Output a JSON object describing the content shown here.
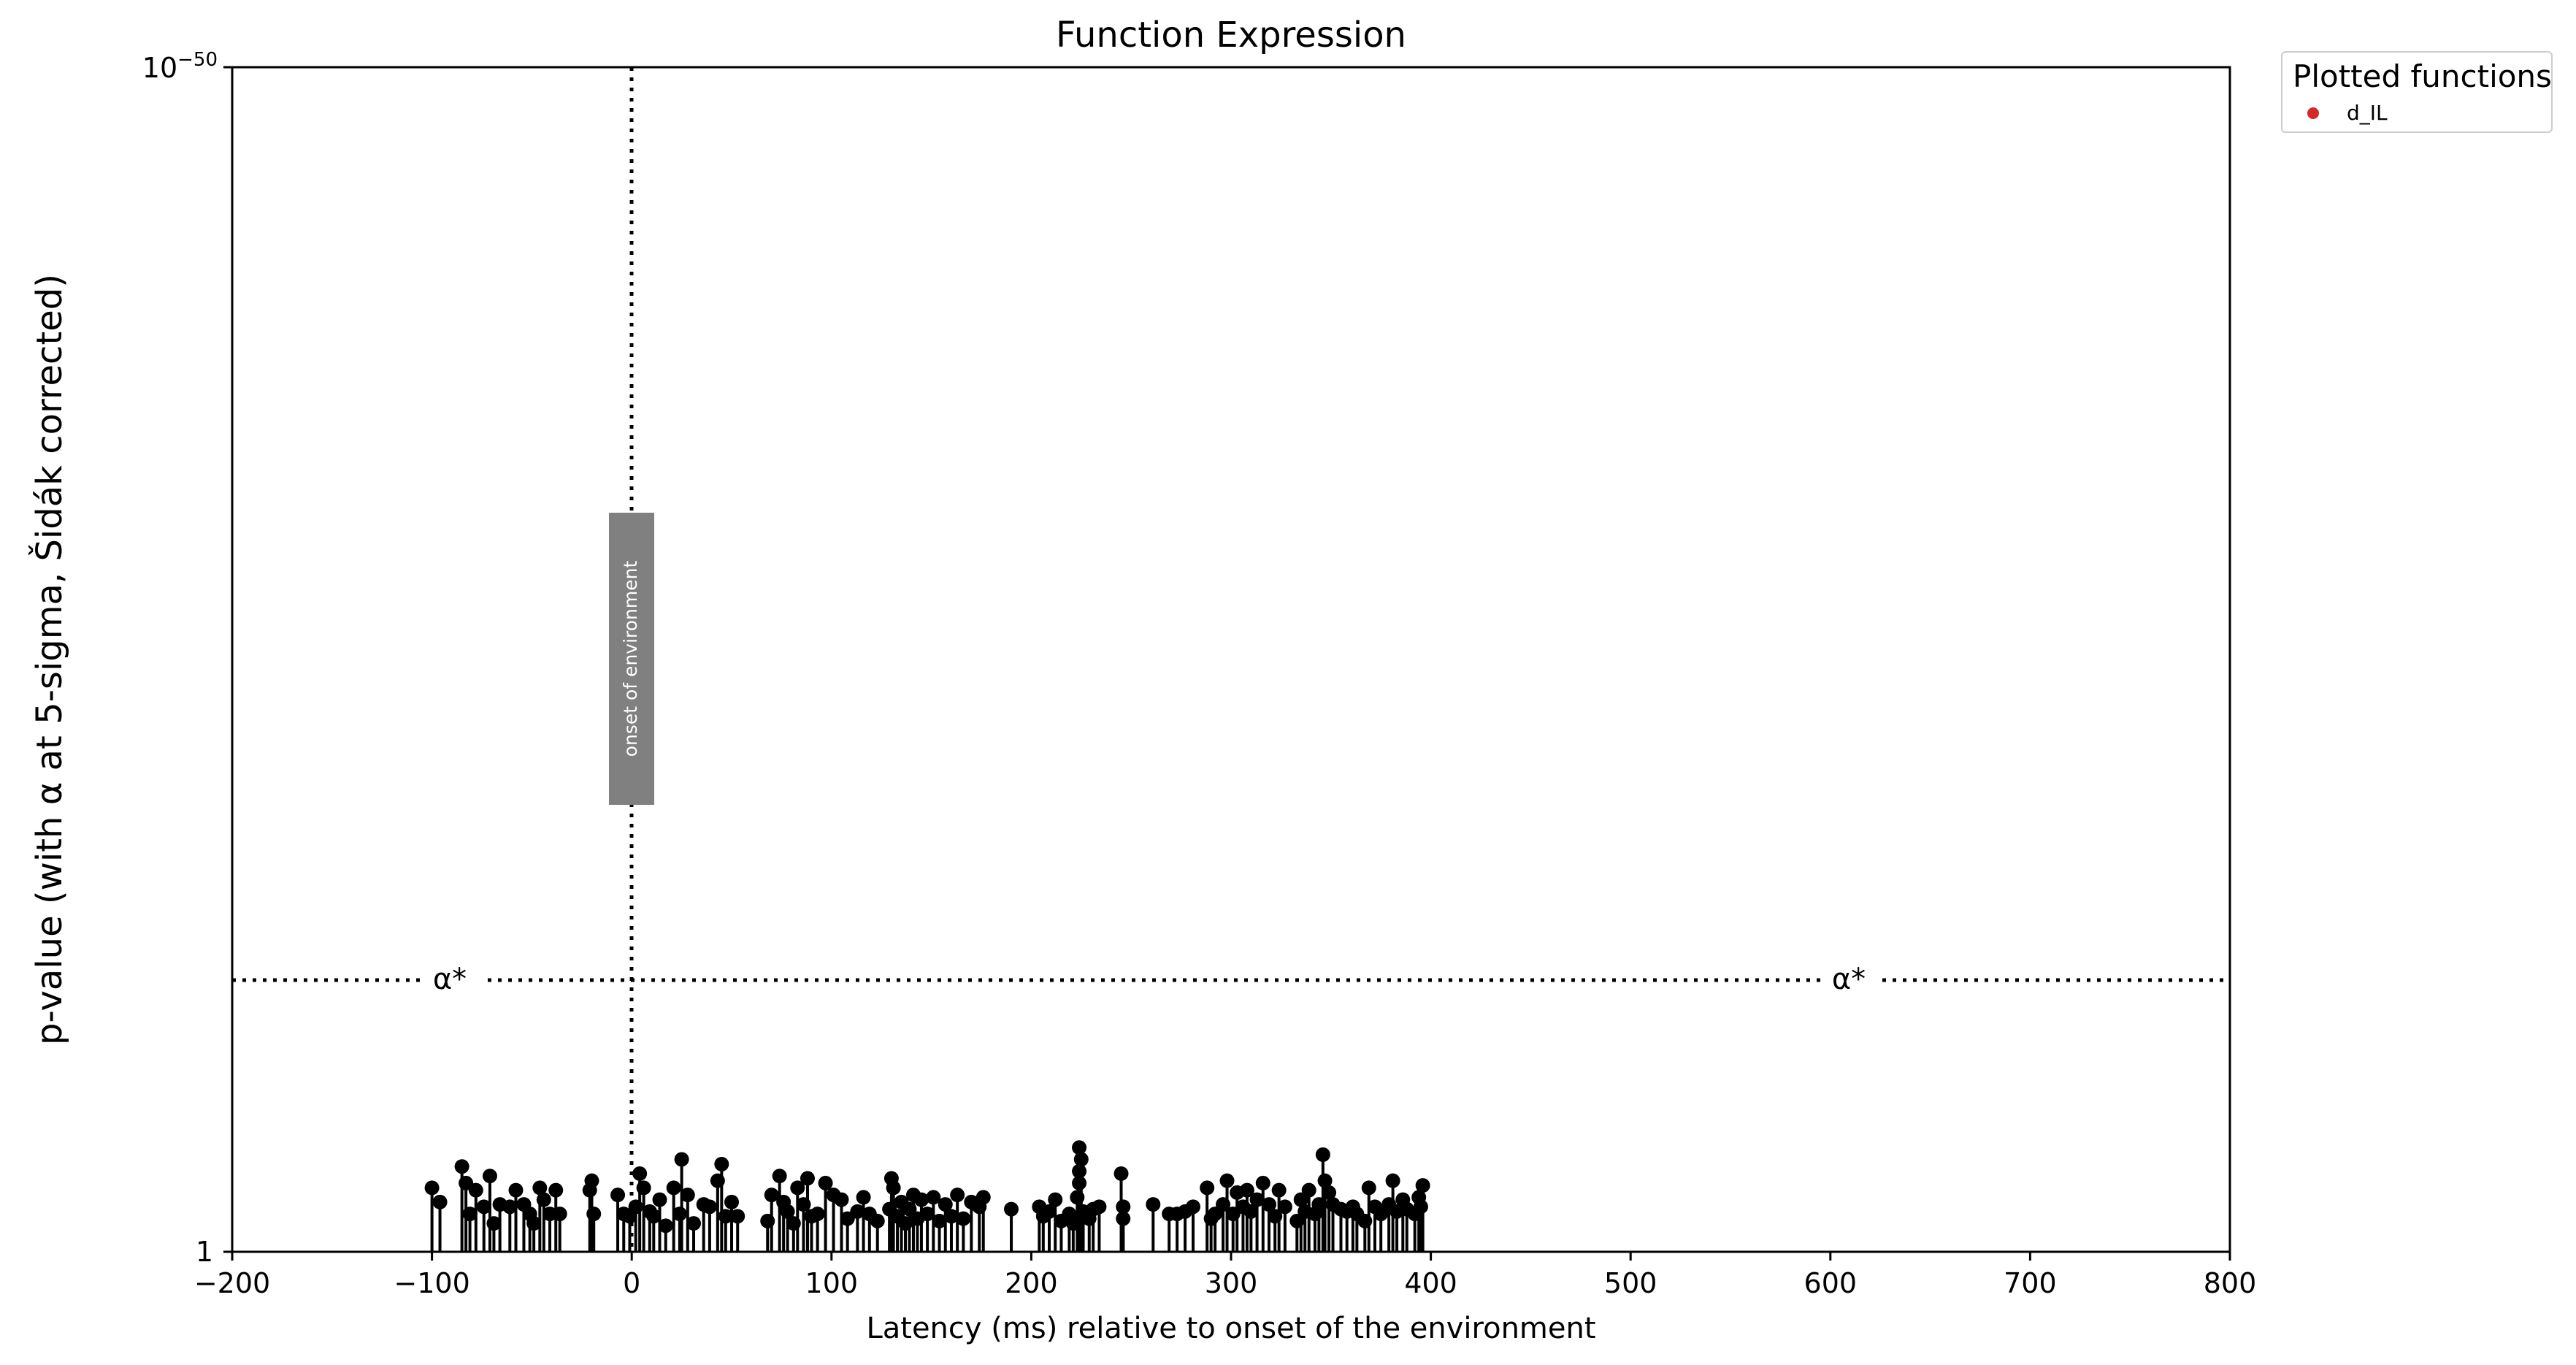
{
  "chart_data": {
    "type": "scatter",
    "title": "Function Expression",
    "xlabel": "Latency (ms) relative to onset of the environment",
    "ylabel": "p-value (with α at 5-sigma, Šidák corrected)",
    "xlim": [
      -200,
      800
    ],
    "x_ticks": [
      "−200",
      "−100",
      "0",
      "100",
      "200",
      "300",
      "400",
      "500",
      "600",
      "700",
      "800"
    ],
    "y_scale": "log",
    "y_tick_top_base": "10",
    "y_tick_top_exp": "−50",
    "y_tick_bottom": "1",
    "ylim_neg_log10": [
      0,
      50
    ],
    "alpha_level_neg_log10": 11.5,
    "alpha_label_left": "α*",
    "alpha_label_right": "α*",
    "vline_x": 0,
    "vline_label": "onset of environment",
    "legend_title": "Plotted functions",
    "legend_position": "outside-top-right",
    "series": [
      {
        "name": "d_IL",
        "legend_color": "#d62728",
        "marker_color": "#000000",
        "points": [
          [
            -100,
            2.7
          ],
          [
            -96,
            2.1
          ],
          [
            -85,
            3.6
          ],
          [
            -83,
            2.9
          ],
          [
            -81,
            1.6
          ],
          [
            -78,
            2.6
          ],
          [
            -74,
            1.9
          ],
          [
            -71,
            3.2
          ],
          [
            -69,
            1.2
          ],
          [
            -66,
            2.0
          ],
          [
            -61,
            1.9
          ],
          [
            -58,
            2.6
          ],
          [
            -54,
            2.0
          ],
          [
            -51,
            1.6
          ],
          [
            -49,
            1.2
          ],
          [
            -46,
            2.7
          ],
          [
            -44,
            2.2
          ],
          [
            -41,
            1.6
          ],
          [
            -38,
            2.6
          ],
          [
            -36,
            1.6
          ],
          [
            -21,
            2.6
          ],
          [
            -20,
            3.0
          ],
          [
            -19,
            1.6
          ],
          [
            -7,
            2.4
          ],
          [
            -4,
            1.6
          ],
          [
            -1,
            1.5
          ],
          [
            2,
            1.9
          ],
          [
            4,
            3.3
          ],
          [
            6,
            2.7
          ],
          [
            9,
            1.7
          ],
          [
            11,
            1.5
          ],
          [
            14,
            2.2
          ],
          [
            17,
            1.1
          ],
          [
            21,
            2.7
          ],
          [
            24,
            1.6
          ],
          [
            25,
            3.9
          ],
          [
            28,
            2.4
          ],
          [
            31,
            1.2
          ],
          [
            36,
            2.0
          ],
          [
            39,
            1.9
          ],
          [
            43,
            3.0
          ],
          [
            45,
            3.7
          ],
          [
            47,
            1.5
          ],
          [
            50,
            2.1
          ],
          [
            53,
            1.5
          ],
          [
            68,
            1.3
          ],
          [
            70,
            2.4
          ],
          [
            74,
            3.2
          ],
          [
            76,
            2.1
          ],
          [
            78,
            1.7
          ],
          [
            81,
            1.2
          ],
          [
            83,
            2.7
          ],
          [
            86,
            2.0
          ],
          [
            88,
            3.1
          ],
          [
            90,
            1.5
          ],
          [
            93,
            1.6
          ],
          [
            97,
            2.9
          ],
          [
            101,
            2.4
          ],
          [
            105,
            2.2
          ],
          [
            108,
            1.4
          ],
          [
            113,
            1.7
          ],
          [
            116,
            2.3
          ],
          [
            119,
            1.6
          ],
          [
            123,
            1.3
          ],
          [
            129,
            1.8
          ],
          [
            130,
            3.1
          ],
          [
            131,
            2.7
          ],
          [
            133,
            1.5
          ],
          [
            135,
            2.1
          ],
          [
            137,
            1.2
          ],
          [
            139,
            1.8
          ],
          [
            141,
            2.4
          ],
          [
            143,
            1.4
          ],
          [
            145,
            2.2
          ],
          [
            148,
            1.6
          ],
          [
            151,
            2.3
          ],
          [
            154,
            1.3
          ],
          [
            157,
            2.0
          ],
          [
            160,
            1.5
          ],
          [
            163,
            2.4
          ],
          [
            166,
            1.4
          ],
          [
            170,
            2.1
          ],
          [
            174,
            1.9
          ],
          [
            176,
            2.3
          ],
          [
            190,
            1.8
          ],
          [
            204,
            1.9
          ],
          [
            206,
            1.5
          ],
          [
            209,
            1.7
          ],
          [
            212,
            2.2
          ],
          [
            215,
            1.3
          ],
          [
            219,
            1.6
          ],
          [
            221,
            1.2
          ],
          [
            223,
            2.3
          ],
          [
            224,
            2.9
          ],
          [
            224,
            3.4
          ],
          [
            224,
            4.4
          ],
          [
            225,
            3.9
          ],
          [
            226,
            1.7
          ],
          [
            229,
            1.4
          ],
          [
            231,
            1.8
          ],
          [
            234,
            1.9
          ],
          [
            245,
            3.3
          ],
          [
            246,
            1.9
          ],
          [
            246,
            1.4
          ],
          [
            261,
            2.0
          ],
          [
            269,
            1.6
          ],
          [
            273,
            1.6
          ],
          [
            277,
            1.7
          ],
          [
            281,
            1.9
          ],
          [
            288,
            2.7
          ],
          [
            290,
            1.4
          ],
          [
            292,
            1.6
          ],
          [
            296,
            2.0
          ],
          [
            298,
            3.0
          ],
          [
            301,
            1.6
          ],
          [
            303,
            2.5
          ],
          [
            306,
            1.9
          ],
          [
            308,
            2.6
          ],
          [
            310,
            1.7
          ],
          [
            313,
            2.2
          ],
          [
            316,
            2.9
          ],
          [
            319,
            2.0
          ],
          [
            322,
            1.5
          ],
          [
            324,
            2.6
          ],
          [
            327,
            1.9
          ],
          [
            333,
            1.3
          ],
          [
            335,
            2.2
          ],
          [
            337,
            1.7
          ],
          [
            339,
            2.6
          ],
          [
            342,
            1.6
          ],
          [
            344,
            2.0
          ],
          [
            346,
            4.1
          ],
          [
            347,
            3.0
          ],
          [
            349,
            2.5
          ],
          [
            351,
            2.0
          ],
          [
            355,
            1.8
          ],
          [
            358,
            1.7
          ],
          [
            361,
            1.9
          ],
          [
            363,
            1.6
          ],
          [
            367,
            1.3
          ],
          [
            369,
            2.7
          ],
          [
            372,
            1.9
          ],
          [
            375,
            1.6
          ],
          [
            379,
            2.0
          ],
          [
            381,
            3.0
          ],
          [
            383,
            1.7
          ],
          [
            386,
            2.2
          ],
          [
            388,
            1.8
          ],
          [
            392,
            1.6
          ],
          [
            394,
            2.3
          ],
          [
            395,
            1.9
          ],
          [
            396,
            2.8
          ]
        ]
      }
    ]
  }
}
